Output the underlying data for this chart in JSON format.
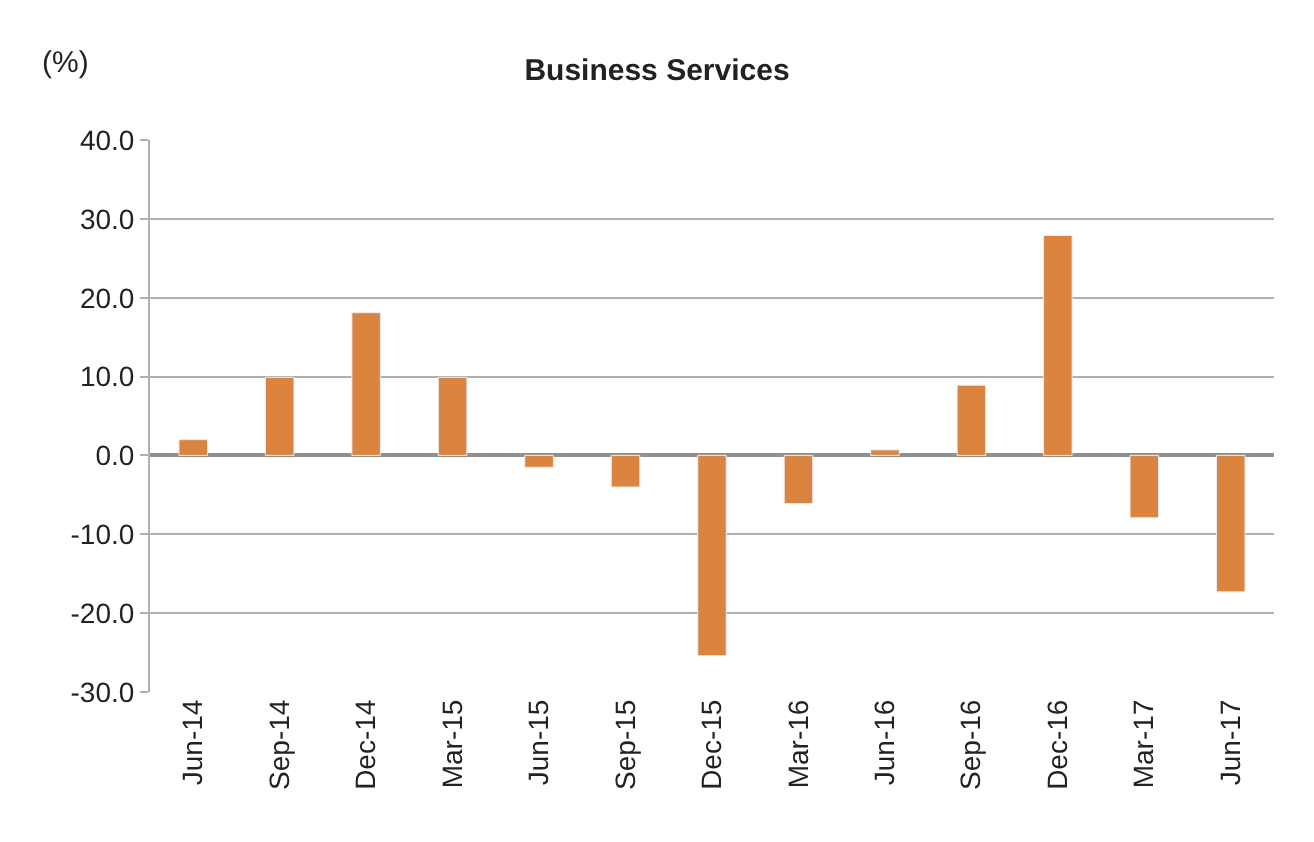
{
  "chart_data": {
    "type": "bar",
    "title": "Business Services",
    "ylabel": "(%)",
    "categories": [
      "Jun-14",
      "Sep-14",
      "Dec-14",
      "Mar-15",
      "Jun-15",
      "Sep-15",
      "Dec-15",
      "Mar-16",
      "Jun-16",
      "Sep-16",
      "Dec-16",
      "Mar-17",
      "Jun-17"
    ],
    "values": [
      2.0,
      9.9,
      18.1,
      9.9,
      -1.5,
      -4.0,
      -25.4,
      -6.1,
      0.7,
      8.9,
      27.9,
      -7.9,
      -17.3
    ],
    "color": "#db8440",
    "ylim": [
      -30,
      40
    ],
    "yticks": [
      {
        "value": -30,
        "label": "-30.0"
      },
      {
        "value": -20,
        "label": "-20.0"
      },
      {
        "value": -10,
        "label": "-10.0"
      },
      {
        "value": 0,
        "label": "0.0"
      },
      {
        "value": 10,
        "label": "10.0"
      },
      {
        "value": 20,
        "label": "20.0"
      },
      {
        "value": 30,
        "label": "30.0"
      },
      {
        "value": 40,
        "label": "40.0"
      }
    ],
    "grid": "y"
  }
}
